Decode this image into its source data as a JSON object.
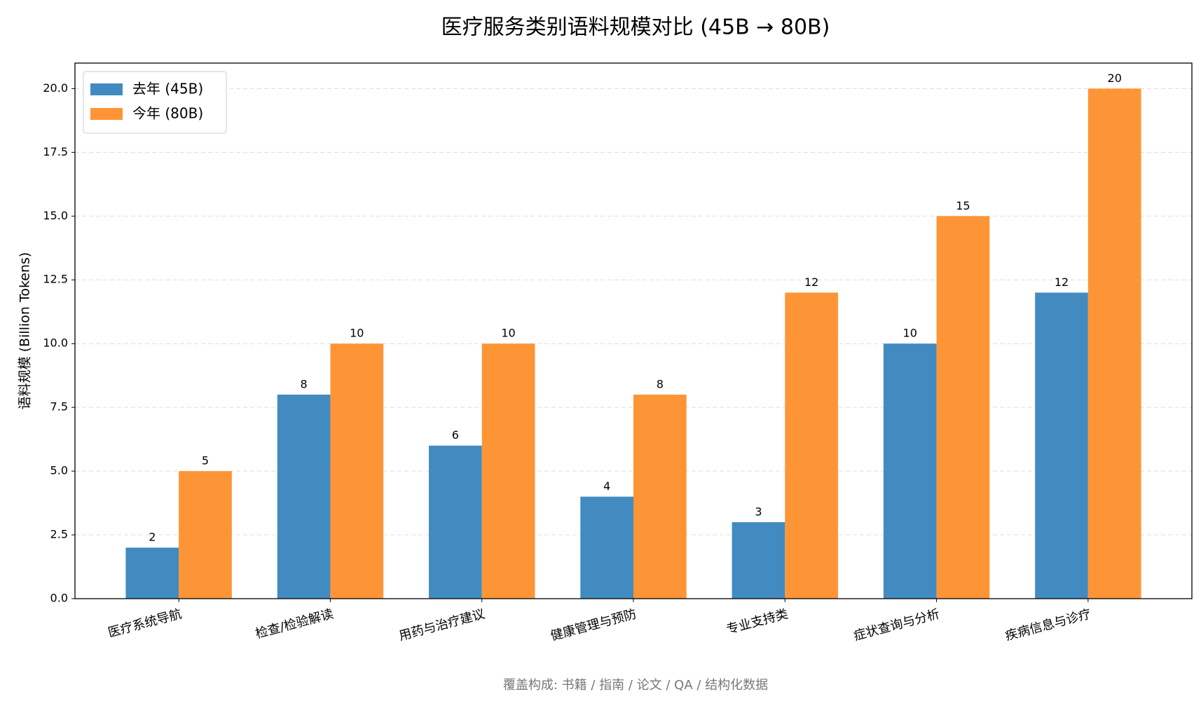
{
  "chart_data": {
    "type": "bar",
    "title": "医疗服务类别语料规模对比 (45B → 80B)",
    "ylabel": "语料规模 (Billion Tokens)",
    "footnote": "覆盖构成: 书籍 / 指南 / 论文 / QA / 结构化数据",
    "categories": [
      "医疗系统导航",
      "检查/检验解读",
      "用药与治疗建议",
      "健康管理与预防",
      "专业支持类",
      "症状查询与分析",
      "疾病信息与诊疗"
    ],
    "series": [
      {
        "name": "去年 (45B)",
        "color": "#428bc0",
        "values": [
          2,
          8,
          6,
          4,
          3,
          10,
          12
        ]
      },
      {
        "name": "今年 (80B)",
        "color": "#fd9537",
        "values": [
          5,
          10,
          10,
          8,
          12,
          15,
          20
        ]
      }
    ],
    "ylim": [
      0,
      21
    ],
    "yticks": [
      {
        "value": 0,
        "label": "0.0"
      },
      2.5,
      {
        "value": 5,
        "label": "5.0"
      },
      7.5,
      {
        "value": 10,
        "label": "10.0"
      },
      12.5,
      {
        "value": 15,
        "label": "15.0"
      },
      17.5,
      {
        "value": 20,
        "label": "20.0"
      }
    ],
    "grid": true,
    "legend": "upper-left"
  }
}
